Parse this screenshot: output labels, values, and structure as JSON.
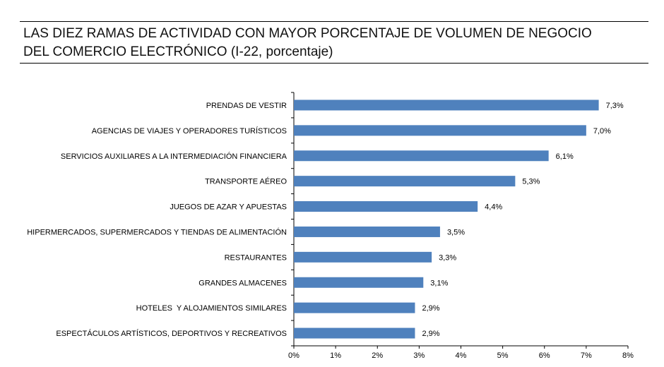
{
  "chart_data": {
    "type": "bar",
    "orientation": "horizontal",
    "title_lines": [
      "LAS DIEZ RAMAS DE ACTIVIDAD CON MAYOR PORCENTAJE DE VOLUMEN DE NEGOCIO",
      "DEL COMERCIO ELECTRÓNICO (I-22, porcentaje)"
    ],
    "categories": [
      "PRENDAS DE VESTIR",
      "AGENCIAS DE VIAJES Y OPERADORES TURÍSTICOS",
      "SERVICIOS AUXILIARES A LA INTERMEDIACIÓN FINANCIERA",
      "TRANSPORTE AÉREO",
      "JUEGOS DE AZAR Y APUESTAS",
      "HIPERMERCADOS, SUPERMERCADOS Y TIENDAS DE ALIMENTACIÓN",
      "RESTAURANTES",
      "GRANDES ALMACENES",
      "HOTELES  Y ALOJAMIENTOS SIMILARES",
      "ESPECTÁCULOS ARTÍSTICOS, DEPORTIVOS Y RECREATIVOS"
    ],
    "values": [
      7.3,
      7.0,
      6.1,
      5.3,
      4.4,
      3.5,
      3.3,
      3.1,
      2.9,
      2.9
    ],
    "value_labels": [
      "7,3%",
      "7,0%",
      "6,1%",
      "5,3%",
      "4,4%",
      "3,5%",
      "3,3%",
      "3,1%",
      "2,9%",
      "2,9%"
    ],
    "x_ticks": [
      "0%",
      "1%",
      "2%",
      "3%",
      "4%",
      "5%",
      "6%",
      "7%",
      "8%"
    ],
    "xlim": [
      0,
      8
    ],
    "bar_color": "#4f81bd",
    "grid": false,
    "legend": "none"
  }
}
